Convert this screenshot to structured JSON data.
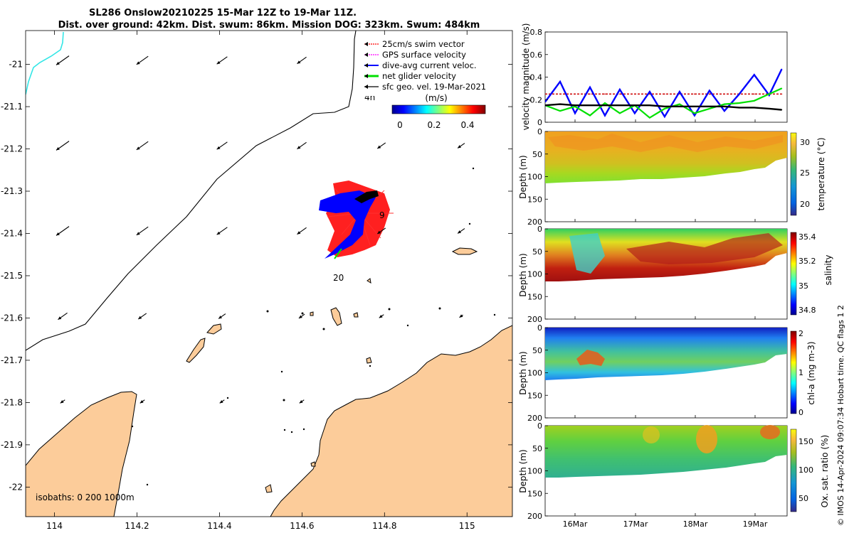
{
  "title": {
    "line1": "SL286 Onslow20210225 15-Mar 12Z to 19-Mar 11Z.",
    "line2": "Dist. over ground: 42km. Dist. swum: 86km. Mission DOG: 323km. Swum: 484km"
  },
  "colors": {
    "land": "#fccc9a",
    "swim_vector": "#ff0000",
    "gps_velocity": "#ff00ff",
    "dive_avg": "#0000ff",
    "net_velocity": "#00e000",
    "sfc_geo": "#000000",
    "early_track": "#33e6e6",
    "speed_line": "#d01010"
  },
  "map": {
    "xticks": [
      "114",
      "114.2",
      "114.4",
      "114.6",
      "114.8",
      "115"
    ],
    "yticks": [
      "-21",
      "-21.1",
      "-21.2",
      "-21.3",
      "-21.4",
      "-21.5",
      "-21.6",
      "-21.7",
      "-21.8",
      "-21.9",
      "-22"
    ],
    "xlim": [
      113.93,
      115.11
    ],
    "ylim": [
      -22.07,
      -20.92
    ],
    "isobaths_label": "isobaths: 0   200  1000m",
    "time_labels": [
      "4h",
      "9",
      "20"
    ],
    "legend": {
      "items": [
        {
          "label": "25cm/s swim vector",
          "color": "#ff0000"
        },
        {
          "label": "GPS surface velocity",
          "color": "#ff00ff"
        },
        {
          "label": "dive-avg current veloc.",
          "color": "#0000ff"
        },
        {
          "label": "net glider velocity",
          "color": "#00e000"
        },
        {
          "label": "sfc geo. vel. 19-Mar-2021",
          "color": "#000000"
        }
      ]
    },
    "colorbar": {
      "label": "(m/s)",
      "ticks": [
        "0",
        "0.2",
        "0.4"
      ]
    }
  },
  "panels": {
    "velocity": {
      "ylabel": "velocity magnitude (m/s)",
      "yticks": [
        "0",
        "0.2",
        "0.4",
        "0.6",
        "0.8"
      ]
    },
    "temperature": {
      "ylabel": "Depth (m)",
      "cblabel": "temperature (°C)",
      "cbticks": [
        "30",
        "25",
        "20"
      ],
      "yticks": [
        "0",
        "50",
        "100",
        "150",
        "200"
      ]
    },
    "salinity": {
      "ylabel": "Depth (m)",
      "cblabel": "salinity",
      "cbticks": [
        "35.4",
        "35.2",
        "35",
        "34.8"
      ],
      "yticks": [
        "0",
        "50",
        "100",
        "150",
        "200"
      ]
    },
    "chla": {
      "ylabel": "Depth (m)",
      "cblabel": "chl-a (mg m-3)",
      "cbticks": [
        "2",
        "1",
        "0"
      ],
      "yticks": [
        "0",
        "50",
        "100",
        "150",
        "200"
      ]
    },
    "oxygen": {
      "ylabel": "Depth (m)",
      "cblabel": "Ox. sat. ratio (%)",
      "cbticks": [
        "150",
        "100",
        "50"
      ],
      "yticks": [
        "0",
        "50",
        "100",
        "150",
        "200"
      ]
    },
    "xticks": [
      "16Mar",
      "17Mar",
      "18Mar",
      "19Mar"
    ]
  },
  "credit": "© IMOS 14-Apr-2024 09:07:34 Hobart time. QC flags 1  2",
  "chart_data": {
    "type": "line",
    "title": "SL286 Onslow20210225 15-Mar 12Z to 19-Mar 11Z.",
    "xlabel": "",
    "ylabel": "velocity magnitude (m/s)",
    "x": [
      15.5,
      15.75,
      16.0,
      16.25,
      16.5,
      16.75,
      17.0,
      17.25,
      17.5,
      17.75,
      18.0,
      18.25,
      18.5,
      18.75,
      19.0,
      19.25,
      19.46
    ],
    "ylim": [
      0,
      0.8
    ],
    "series": [
      {
        "name": "25cm/s swim vector",
        "values": [
          0.25,
          0.25,
          0.25,
          0.25,
          0.25,
          0.25,
          0.25,
          0.25,
          0.25,
          0.25,
          0.25,
          0.25,
          0.25,
          0.25,
          0.25,
          0.25,
          0.25
        ]
      },
      {
        "name": "dive-avg current veloc.",
        "values": [
          0.18,
          0.36,
          0.08,
          0.31,
          0.06,
          0.29,
          0.08,
          0.27,
          0.05,
          0.27,
          0.06,
          0.28,
          0.1,
          0.25,
          0.42,
          0.24,
          0.47
        ]
      },
      {
        "name": "net glider velocity",
        "values": [
          0.15,
          0.1,
          0.14,
          0.06,
          0.17,
          0.08,
          0.15,
          0.04,
          0.12,
          0.16,
          0.08,
          0.12,
          0.16,
          0.17,
          0.19,
          0.25,
          0.3
        ]
      },
      {
        "name": "sfc geo. vel. 19-Mar-2021",
        "values": [
          0.15,
          0.16,
          0.15,
          0.15,
          0.15,
          0.15,
          0.15,
          0.15,
          0.14,
          0.14,
          0.14,
          0.14,
          0.14,
          0.13,
          0.13,
          0.12,
          0.11
        ]
      }
    ]
  }
}
